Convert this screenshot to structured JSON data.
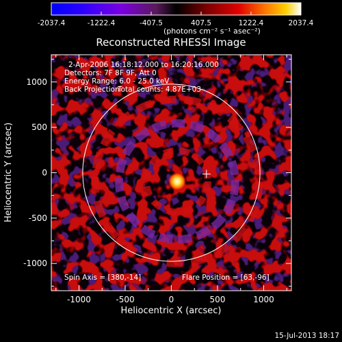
{
  "colorbar": {
    "ticks": [
      "-2037.4",
      "-1222.4",
      "-407.5",
      "407.5",
      "1222.4",
      "2037.4"
    ],
    "tick_values": [
      -2037.4,
      -1222.4,
      -407.5,
      407.5,
      1222.4,
      2037.4
    ],
    "range": [
      -2037.4,
      2037.4
    ],
    "units": "(photons cm⁻² s⁻¹ asec⁻²)"
  },
  "chart_data": {
    "type": "heatmap",
    "title": "Reconstructed RHESSI Image",
    "xlabel": "Heliocentric X (arcsec)",
    "ylabel": "Heliocentric Y (arcsec)",
    "xlim": [
      -1300,
      1300
    ],
    "ylim": [
      -1300,
      1300
    ],
    "x_ticks": [
      "-1000",
      "-500",
      "0",
      "500",
      "1000"
    ],
    "x_tick_values": [
      -1000,
      -500,
      0,
      500,
      1000
    ],
    "y_ticks": [
      "1000",
      "500",
      "0",
      "-500",
      "-1000"
    ],
    "y_tick_values": [
      1000,
      500,
      0,
      -500,
      -1000
    ],
    "annotations": [
      "2-Apr-2006 16:18:12.000 to 16:20:16.000",
      "Detectors: 7F 8F 9F, Att 0",
      "Energy Range: 6.0 - 25.0 keV",
      "Back Projection",
      "Total counts: 4.87E+03"
    ],
    "spin_axis_label": "Spin Axis = [380,-14]",
    "flare_position_label": "Flare Position = [63,-96]",
    "spin_axis": [
      380,
      -14
    ],
    "flare_position": [
      63,
      -96
    ],
    "solar_disk_radius": 960
  },
  "footer": {
    "timestamp": "15-Jul-2013 18:17"
  }
}
